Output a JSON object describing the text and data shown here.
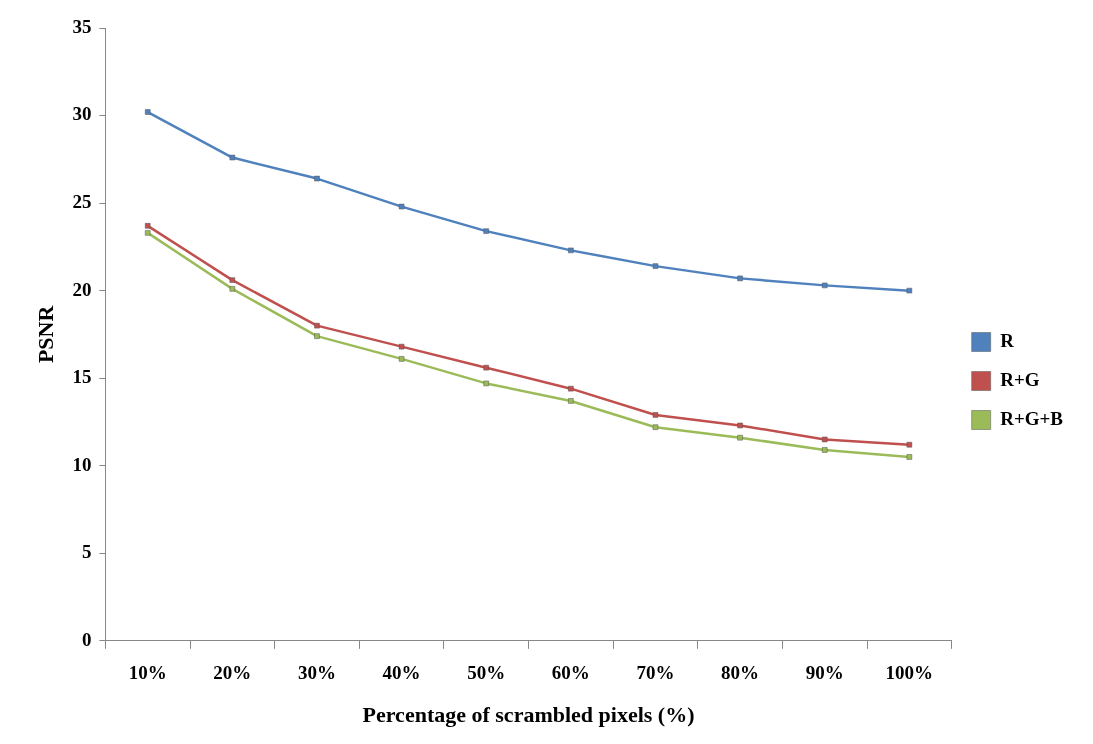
{
  "chart_data": {
    "type": "line",
    "xlabel": "Percentage of scrambled pixels (%)",
    "ylabel": "PSNR",
    "categories": [
      "10%",
      "20%",
      "30%",
      "40%",
      "50%",
      "60%",
      "70%",
      "80%",
      "90%",
      "100%"
    ],
    "series": [
      {
        "name": "R",
        "color": "#4f81bd",
        "values": [
          30.2,
          27.6,
          26.4,
          24.8,
          23.4,
          22.3,
          21.4,
          20.7,
          20.3,
          20.0
        ]
      },
      {
        "name": "R+G",
        "color": "#c0504d",
        "values": [
          23.7,
          20.6,
          18.0,
          16.8,
          15.6,
          14.4,
          12.9,
          12.3,
          11.5,
          11.2
        ]
      },
      {
        "name": "R+G+B",
        "color": "#9bbb59",
        "values": [
          23.3,
          20.1,
          17.4,
          16.1,
          14.7,
          13.7,
          12.2,
          11.6,
          10.9,
          10.5
        ]
      }
    ],
    "ylim": [
      0,
      35
    ],
    "yticks": [
      0,
      5,
      10,
      15,
      20,
      25,
      30,
      35
    ],
    "grid": false,
    "legend": "right",
    "marker": "square",
    "line_style": "solid"
  }
}
